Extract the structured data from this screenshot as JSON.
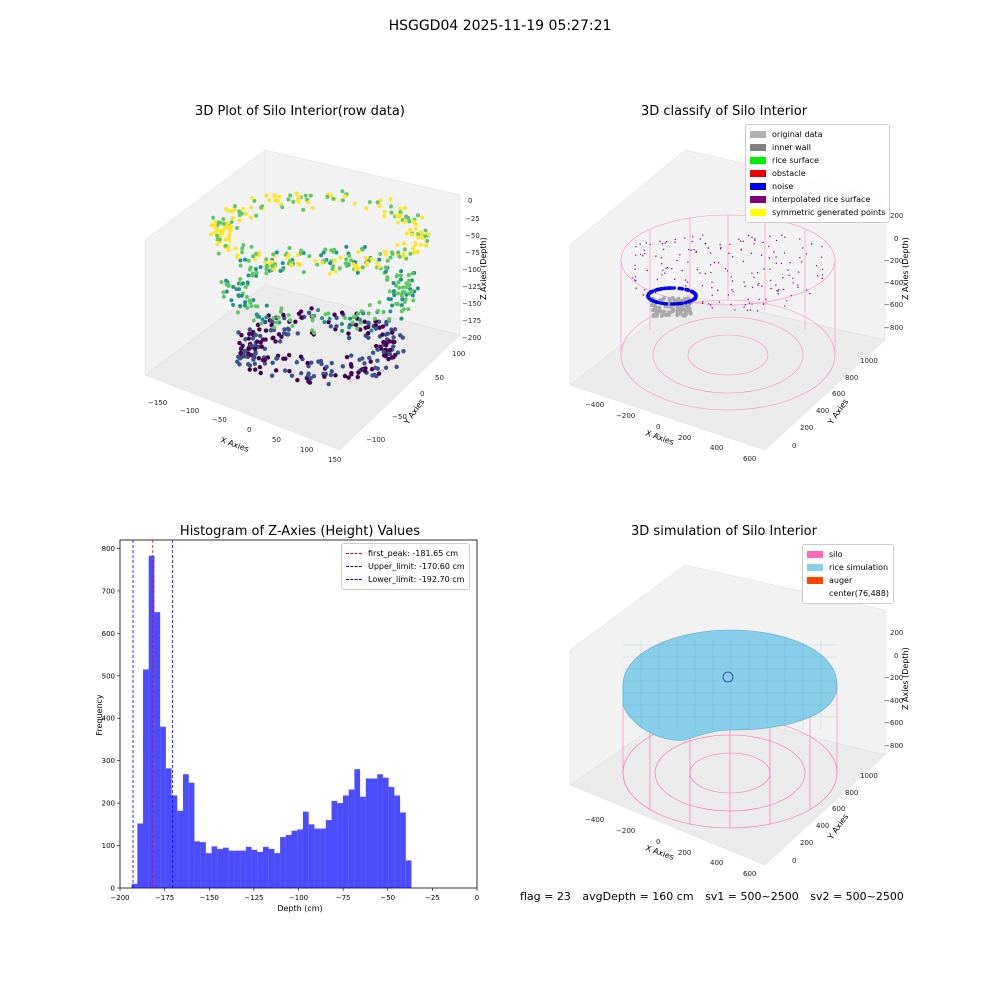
{
  "suptitle": "HSGGD04 2025-11-19 05:27:21",
  "panels": {
    "raw": {
      "title": "3D Plot of Silo Interior(row data)",
      "xlabel": "X Axies",
      "ylabel": "Y Axies",
      "zlabel": "Z Axies (Depth)",
      "xticks": [
        "−150",
        "−100",
        "−50",
        "0",
        "50",
        "100",
        "150"
      ],
      "yticks": [
        "−100",
        "−50",
        "0",
        "50",
        "100"
      ],
      "zticks": [
        "0",
        "−25",
        "−50",
        "−75",
        "−100",
        "−125",
        "−150",
        "−175",
        "−200"
      ]
    },
    "classify": {
      "title": "3D classify of Silo Interior",
      "xlabel": "X Axies",
      "ylabel": "Y Axies",
      "zlabel": "Z Axies (Depth)",
      "xticks": [
        "−400",
        "−200",
        "0",
        "200",
        "400",
        "600"
      ],
      "yticks": [
        "0",
        "200",
        "400",
        "600",
        "800",
        "1000"
      ],
      "zticks": [
        "200",
        "0",
        "−200",
        "−400",
        "−600",
        "−800"
      ],
      "legend": [
        {
          "label": "original data",
          "color": "#b0b0b0"
        },
        {
          "label": "inner wall",
          "color": "#808080"
        },
        {
          "label": "rice surface",
          "color": "#00ee00"
        },
        {
          "label": "obstacle",
          "color": "#ee0000"
        },
        {
          "label": "noise",
          "color": "#0000ee"
        },
        {
          "label": "interpolated rice surface",
          "color": "#800080"
        },
        {
          "label": "symmetric generated points",
          "color": "#ffff00"
        }
      ]
    },
    "simulation": {
      "title": "3D simulation of Silo Interior",
      "xlabel": "X Axies",
      "ylabel": "Y Axies",
      "zlabel": "Z Axies (Depth)",
      "xticks": [
        "−400",
        "−200",
        "0",
        "200",
        "400",
        "600"
      ],
      "yticks": [
        "0",
        "200",
        "400",
        "600",
        "800",
        "1000"
      ],
      "zticks": [
        "200",
        "0",
        "−200",
        "−400",
        "−600",
        "−800"
      ],
      "legend": [
        {
          "label": "silo",
          "color": "#ff69b4"
        },
        {
          "label": "rice simulation",
          "color": "#87ceeb"
        },
        {
          "label": "auger",
          "color": "#ff4500"
        },
        {
          "label": "center(76,488)",
          "color": "#ffffff"
        }
      ]
    }
  },
  "chart_data": {
    "type": "bar",
    "title": "Histogram of Z-Axies (Height) Values",
    "xlabel": "Depth (cm)",
    "ylabel": "Frequency",
    "xlim": [
      -200,
      0
    ],
    "ylim": [
      0,
      820
    ],
    "xticks": [
      -200,
      -175,
      -150,
      -125,
      -100,
      -75,
      -50,
      -25,
      0
    ],
    "yticks": [
      0,
      100,
      200,
      300,
      400,
      500,
      600,
      700,
      800
    ],
    "bar_color": "#0000ff",
    "bins": [
      {
        "x0": -193.5,
        "x1": -190.3,
        "count": 10
      },
      {
        "x0": -190.3,
        "x1": -187.1,
        "count": 152
      },
      {
        "x0": -187.1,
        "x1": -183.9,
        "count": 515
      },
      {
        "x0": -183.9,
        "x1": -180.7,
        "count": 783
      },
      {
        "x0": -180.7,
        "x1": -177.5,
        "count": 650
      },
      {
        "x0": -177.5,
        "x1": -174.3,
        "count": 380
      },
      {
        "x0": -174.3,
        "x1": -171.1,
        "count": 282
      },
      {
        "x0": -171.1,
        "x1": -167.9,
        "count": 218
      },
      {
        "x0": -167.9,
        "x1": -164.7,
        "count": 182
      },
      {
        "x0": -164.7,
        "x1": -161.5,
        "count": 268
      },
      {
        "x0": -161.5,
        "x1": -158.3,
        "count": 248
      },
      {
        "x0": -158.3,
        "x1": -155.1,
        "count": 110
      },
      {
        "x0": -155.1,
        "x1": -151.9,
        "count": 108
      },
      {
        "x0": -151.9,
        "x1": -148.7,
        "count": 82
      },
      {
        "x0": -148.7,
        "x1": -145.5,
        "count": 98
      },
      {
        "x0": -145.5,
        "x1": -142.3,
        "count": 92
      },
      {
        "x0": -142.3,
        "x1": -139.1,
        "count": 95
      },
      {
        "x0": -139.1,
        "x1": -135.9,
        "count": 88
      },
      {
        "x0": -135.9,
        "x1": -132.7,
        "count": 88
      },
      {
        "x0": -132.7,
        "x1": -129.5,
        "count": 88
      },
      {
        "x0": -129.5,
        "x1": -126.3,
        "count": 97
      },
      {
        "x0": -126.3,
        "x1": -123.1,
        "count": 90
      },
      {
        "x0": -123.1,
        "x1": -119.9,
        "count": 85
      },
      {
        "x0": -119.9,
        "x1": -116.7,
        "count": 97
      },
      {
        "x0": -116.7,
        "x1": -113.5,
        "count": 92
      },
      {
        "x0": -113.5,
        "x1": -110.3,
        "count": 82
      },
      {
        "x0": -110.3,
        "x1": -107.1,
        "count": 120
      },
      {
        "x0": -107.1,
        "x1": -103.9,
        "count": 125
      },
      {
        "x0": -103.9,
        "x1": -100.7,
        "count": 135
      },
      {
        "x0": -100.7,
        "x1": -97.5,
        "count": 138
      },
      {
        "x0": -97.5,
        "x1": -94.3,
        "count": 180
      },
      {
        "x0": -94.3,
        "x1": -91.1,
        "count": 150
      },
      {
        "x0": -91.1,
        "x1": -87.9,
        "count": 140
      },
      {
        "x0": -87.9,
        "x1": -84.7,
        "count": 140
      },
      {
        "x0": -84.7,
        "x1": -81.5,
        "count": 160
      },
      {
        "x0": -81.5,
        "x1": -78.3,
        "count": 205
      },
      {
        "x0": -78.3,
        "x1": -75.1,
        "count": 200
      },
      {
        "x0": -75.1,
        "x1": -71.9,
        "count": 218
      },
      {
        "x0": -71.9,
        "x1": -68.7,
        "count": 232
      },
      {
        "x0": -68.7,
        "x1": -65.5,
        "count": 280
      },
      {
        "x0": -65.5,
        "x1": -62.3,
        "count": 215
      },
      {
        "x0": -62.3,
        "x1": -59.1,
        "count": 258
      },
      {
        "x0": -59.1,
        "x1": -55.9,
        "count": 258
      },
      {
        "x0": -55.9,
        "x1": -52.7,
        "count": 268
      },
      {
        "x0": -52.7,
        "x1": -49.5,
        "count": 260
      },
      {
        "x0": -49.5,
        "x1": -46.3,
        "count": 238
      },
      {
        "x0": -46.3,
        "x1": -43.1,
        "count": 218
      },
      {
        "x0": -43.1,
        "x1": -39.9,
        "count": 178
      },
      {
        "x0": -39.9,
        "x1": -36.7,
        "count": 65
      }
    ],
    "vlines": [
      {
        "label": "first_peak: -181.65 cm",
        "x": -181.65,
        "color": "#ff0000"
      },
      {
        "label": "Upper_limit: -170.60 cm",
        "x": -170.6,
        "color": "#0000ff"
      },
      {
        "label": "Lower_limit: -192.70 cm",
        "x": -192.7,
        "color": "#0000ff"
      }
    ]
  },
  "footer": {
    "flag": "flag = 23",
    "avgDepth": "avgDepth = 160 cm",
    "sv1": "sv1 = 500~2500",
    "sv2": "sv2 = 500~2500"
  }
}
